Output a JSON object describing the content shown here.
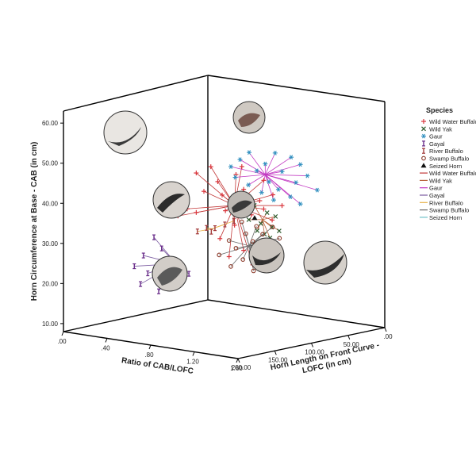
{
  "chart_data": {
    "type": "scatter",
    "projection": "3d",
    "title": "",
    "ylabel": "Horn Circumference at Base - CAB  (in cm)",
    "xlabel": "Ratio of CAB/LOFC",
    "zlabel_line1": "Horn Length on Front Curve -",
    "zlabel_line2": "LOFC (in cm)",
    "y_ticks": [
      "10.00",
      "20.00",
      "30.00",
      "40.00",
      "50.00",
      "60.00"
    ],
    "x_ticks": [
      ".00",
      ".40",
      ".80",
      "1.20",
      "1.60"
    ],
    "z_ticks": [
      ".00",
      "50.00",
      "100.00",
      "150.00",
      "200.00"
    ],
    "ylim": [
      8,
      63
    ],
    "xlim": [
      0,
      1.6
    ],
    "zlim": [
      0,
      200
    ],
    "grid": false,
    "legend": {
      "title": "Species",
      "placement": "right",
      "markers": [
        {
          "name": "Wild Water Buffalo",
          "symbol": "+",
          "color": "#d9343b"
        },
        {
          "name": "Wild Yak",
          "symbol": "×",
          "color": "#2f5d2f"
        },
        {
          "name": "Gaur",
          "symbol": "*",
          "color": "#2f8fbf"
        },
        {
          "name": "Gayal",
          "symbol": "I",
          "color": "#6a2d8a"
        },
        {
          "name": "River Buffalo",
          "symbol": "I",
          "color": "#a33b3b"
        },
        {
          "name": "Swamp Buffalo",
          "symbol": "o",
          "color": "#8b3a2a"
        },
        {
          "name": "Seized Horn",
          "symbol": "▲",
          "color": "#111111"
        }
      ],
      "lines": [
        {
          "name": "Wild Water Buffalo",
          "color": "#c33a3a"
        },
        {
          "name": "Wild Yak",
          "color": "#b8623a"
        },
        {
          "name": "Gaur",
          "color": "#c239c2"
        },
        {
          "name": "Gayal",
          "color": "#7a5aa0"
        },
        {
          "name": "River Buffalo",
          "color": "#e8b24a"
        },
        {
          "name": "Swamp Buffalo",
          "color": "#6a6a6a"
        },
        {
          "name": "Seized Horn",
          "color": "#6fc0c8"
        }
      ]
    },
    "series": [
      {
        "name": "Wild Water Buffalo",
        "centroid": {
          "x": 1.3,
          "y": 47.5,
          "z": 160
        },
        "points": [
          {
            "x": 1.05,
            "y": 56,
            "z": 175
          },
          {
            "x": 1.15,
            "y": 58,
            "z": 170
          },
          {
            "x": 1.4,
            "y": 59,
            "z": 165
          },
          {
            "x": 1.2,
            "y": 54,
            "z": 168
          },
          {
            "x": 1.3,
            "y": 56,
            "z": 158
          },
          {
            "x": 1.5,
            "y": 55,
            "z": 150
          },
          {
            "x": 1.1,
            "y": 51,
            "z": 172
          },
          {
            "x": 1.35,
            "y": 52,
            "z": 155
          },
          {
            "x": 1.55,
            "y": 51,
            "z": 145
          },
          {
            "x": 1.2,
            "y": 50,
            "z": 162
          },
          {
            "x": 1.45,
            "y": 49,
            "z": 148
          },
          {
            "x": 1.6,
            "y": 48,
            "z": 140
          },
          {
            "x": 1.0,
            "y": 46,
            "z": 180
          },
          {
            "x": 1.25,
            "y": 46,
            "z": 165
          },
          {
            "x": 1.5,
            "y": 47,
            "z": 150
          },
          {
            "x": 1.05,
            "y": 45,
            "z": 175
          },
          {
            "x": 1.4,
            "y": 45,
            "z": 152
          },
          {
            "x": 1.55,
            "y": 44,
            "z": 146
          },
          {
            "x": 0.95,
            "y": 44,
            "z": 185
          },
          {
            "x": 1.3,
            "y": 42,
            "z": 160
          },
          {
            "x": 1.2,
            "y": 38,
            "z": 165
          },
          {
            "x": 1.35,
            "y": 35,
            "z": 155
          },
          {
            "x": 1.25,
            "y": 33,
            "z": 160
          },
          {
            "x": 1.4,
            "y": 31,
            "z": 150
          }
        ]
      },
      {
        "name": "Wild Yak",
        "centroid": {
          "x": 1.22,
          "y": 41,
          "z": 110
        },
        "points": [
          {
            "x": 1.18,
            "y": 45,
            "z": 115
          },
          {
            "x": 1.25,
            "y": 43,
            "z": 108
          },
          {
            "x": 1.3,
            "y": 42,
            "z": 104
          },
          {
            "x": 1.15,
            "y": 41,
            "z": 118
          },
          {
            "x": 1.22,
            "y": 40,
            "z": 112
          },
          {
            "x": 1.28,
            "y": 39,
            "z": 106
          },
          {
            "x": 1.2,
            "y": 38,
            "z": 114
          },
          {
            "x": 1.32,
            "y": 38,
            "z": 102
          },
          {
            "x": 1.24,
            "y": 37,
            "z": 110
          },
          {
            "x": 1.27,
            "y": 36,
            "z": 107
          }
        ]
      },
      {
        "name": "Gaur",
        "centroid": {
          "x": 1.1,
          "y": 52,
          "z": 88
        },
        "points": [
          {
            "x": 1.0,
            "y": 58,
            "z": 95
          },
          {
            "x": 1.15,
            "y": 58,
            "z": 82
          },
          {
            "x": 1.25,
            "y": 57,
            "z": 75
          },
          {
            "x": 0.95,
            "y": 56,
            "z": 100
          },
          {
            "x": 1.1,
            "y": 55,
            "z": 88
          },
          {
            "x": 1.3,
            "y": 55,
            "z": 70
          },
          {
            "x": 0.9,
            "y": 54,
            "z": 105
          },
          {
            "x": 1.05,
            "y": 53,
            "z": 92
          },
          {
            "x": 1.2,
            "y": 53,
            "z": 80
          },
          {
            "x": 1.35,
            "y": 52,
            "z": 68
          },
          {
            "x": 0.92,
            "y": 51,
            "z": 102
          },
          {
            "x": 1.12,
            "y": 50,
            "z": 86
          },
          {
            "x": 1.28,
            "y": 50,
            "z": 73
          },
          {
            "x": 1.0,
            "y": 49,
            "z": 96
          },
          {
            "x": 1.18,
            "y": 48,
            "z": 82
          },
          {
            "x": 1.4,
            "y": 48,
            "z": 62
          },
          {
            "x": 1.08,
            "y": 47,
            "z": 90
          },
          {
            "x": 1.25,
            "y": 46,
            "z": 76
          },
          {
            "x": 1.15,
            "y": 45,
            "z": 84
          },
          {
            "x": 1.3,
            "y": 44,
            "z": 70
          }
        ]
      },
      {
        "name": "Gayal",
        "centroid": {
          "x": 0.7,
          "y": 28,
          "z": 150
        },
        "points": [
          {
            "x": 0.55,
            "y": 35,
            "z": 158
          },
          {
            "x": 0.6,
            "y": 32,
            "z": 155
          },
          {
            "x": 0.5,
            "y": 30,
            "z": 165
          },
          {
            "x": 0.65,
            "y": 29,
            "z": 150
          },
          {
            "x": 0.45,
            "y": 27,
            "z": 170
          },
          {
            "x": 0.7,
            "y": 27,
            "z": 145
          },
          {
            "x": 0.52,
            "y": 25,
            "z": 162
          },
          {
            "x": 0.75,
            "y": 25,
            "z": 140
          },
          {
            "x": 0.6,
            "y": 23,
            "z": 155
          },
          {
            "x": 0.48,
            "y": 22,
            "z": 166
          },
          {
            "x": 0.68,
            "y": 22,
            "z": 146
          },
          {
            "x": 0.58,
            "y": 20,
            "z": 156
          }
        ]
      },
      {
        "name": "River Buffalo",
        "centroid": {
          "x": 0.3,
          "y": 31,
          "z": 40
        },
        "points": [
          {
            "x": 0.2,
            "y": 30,
            "z": 45
          },
          {
            "x": 0.25,
            "y": 31,
            "z": 40
          },
          {
            "x": 0.3,
            "y": 31,
            "z": 36
          },
          {
            "x": 0.35,
            "y": 32,
            "z": 30
          },
          {
            "x": 0.4,
            "y": 33,
            "z": 25
          },
          {
            "x": 0.28,
            "y": 30,
            "z": 38
          }
        ]
      },
      {
        "name": "Swamp Buffalo",
        "centroid": {
          "x": 1.0,
          "y": 32,
          "z": 95
        },
        "points": [
          {
            "x": 0.9,
            "y": 38,
            "z": 90
          },
          {
            "x": 1.0,
            "y": 37,
            "z": 85
          },
          {
            "x": 1.1,
            "y": 37,
            "z": 78
          },
          {
            "x": 0.95,
            "y": 35,
            "z": 92
          },
          {
            "x": 1.05,
            "y": 35,
            "z": 84
          },
          {
            "x": 1.15,
            "y": 34,
            "z": 76
          },
          {
            "x": 0.85,
            "y": 33,
            "z": 100
          },
          {
            "x": 1.0,
            "y": 33,
            "z": 90
          },
          {
            "x": 1.12,
            "y": 32,
            "z": 80
          },
          {
            "x": 0.9,
            "y": 31,
            "z": 98
          },
          {
            "x": 1.05,
            "y": 30,
            "z": 88
          },
          {
            "x": 0.8,
            "y": 29,
            "z": 106
          },
          {
            "x": 0.95,
            "y": 28,
            "z": 96
          },
          {
            "x": 1.1,
            "y": 27,
            "z": 84
          },
          {
            "x": 0.88,
            "y": 26,
            "z": 102
          },
          {
            "x": 1.02,
            "y": 25,
            "z": 92
          }
        ]
      },
      {
        "name": "Seized Horn",
        "centroid": {
          "x": 1.05,
          "y": 40,
          "z": 95
        },
        "points": [
          {
            "x": 1.05,
            "y": 40,
            "z": 95
          }
        ]
      }
    ]
  }
}
